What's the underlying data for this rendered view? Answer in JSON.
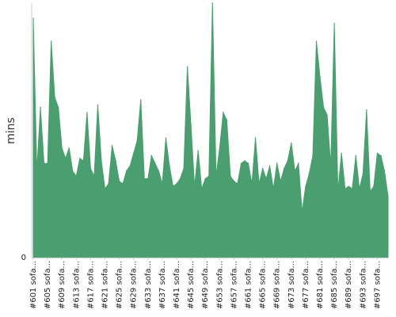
{
  "chart_data": {
    "type": "area",
    "title": "",
    "xlabel": "",
    "ylabel": "mins",
    "ylim": [
      0,
      100
    ],
    "y_ticks": [
      "0"
    ],
    "color": "#4a9e6f",
    "legend": "none",
    "grid": false,
    "x_tick_labels": [
      "#601 sofa...",
      "#605 sofa...",
      "#609 sofa...",
      "#613 sofa...",
      "#617 sofa...",
      "#621 sofa...",
      "#625 sofa...",
      "#629 sofa...",
      "#633 sofa...",
      "#637 sofa...",
      "#641 sofa...",
      "#645 sofa...",
      "#649 sofa...",
      "#653 sofa...",
      "#657 sofa...",
      "#661 sofa...",
      "#665 sofa...",
      "#669 sofa...",
      "#673 sofa...",
      "#677 sofa...",
      "#681 sofa...",
      "#685 sofa...",
      "#689 sofa...",
      "#693 sofa...",
      "#697 sofa..."
    ],
    "values": [
      94,
      34,
      59,
      37,
      37,
      85,
      63,
      59,
      43,
      39,
      43,
      34,
      32,
      39,
      38,
      57,
      35,
      32,
      60,
      38,
      27,
      29,
      44,
      38,
      30,
      29,
      34,
      36,
      41,
      46,
      62,
      31,
      31,
      40,
      37,
      34,
      29,
      47,
      36,
      28,
      29,
      31,
      35,
      75,
      52,
      28,
      42,
      27,
      31,
      32,
      100,
      32,
      43,
      57,
      54,
      32,
      30,
      29,
      37,
      38,
      37,
      29,
      47,
      29,
      35,
      31,
      36,
      27,
      37,
      30,
      35,
      38,
      45,
      34,
      37,
      18,
      28,
      33,
      40,
      85,
      71,
      59,
      56,
      36,
      92,
      26,
      41,
      27,
      28,
      27,
      40,
      27,
      33,
      58,
      26,
      28,
      41,
      40,
      34,
      24
    ]
  }
}
